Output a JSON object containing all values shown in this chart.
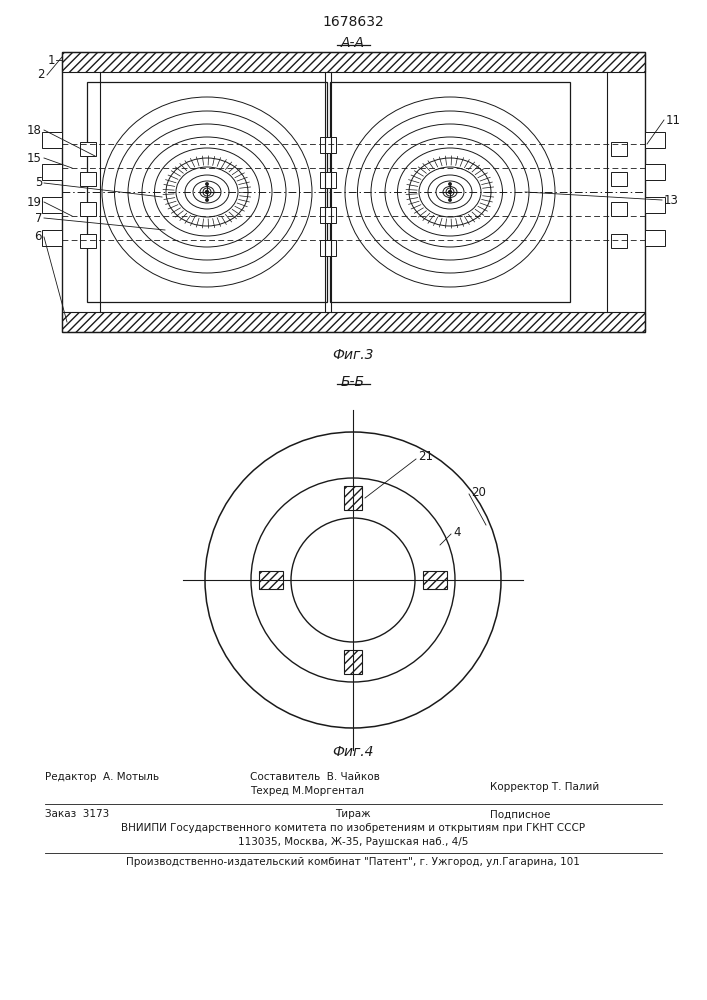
{
  "title": "1678632",
  "fig3_label": "А-А",
  "fig3_caption": "Фиг.3",
  "fig4_label": "Б-Б",
  "fig4_caption": "Фиг.4",
  "footer_line1_left": "Редактор  А. Мотыль",
  "footer_line1_center": "Составитель  В. Чайков",
  "footer_line2_center": "Техред М.Моргентал",
  "footer_line1_right": "Корректор Т. Палий",
  "footer_line3_left": "Заказ  3173",
  "footer_line3_center": "Тираж",
  "footer_line3_right": "Подписное",
  "footer_line4": "ВНИИПИ Государственного комитета по изобретениям и открытиям при ГКНТ СССР",
  "footer_line5": "113035, Москва, Ж-35, Раушская наб., 4/5",
  "footer_line6": "Производственно-издательский комбинат \"Патент\", г. Ужгород, ул.Гагарина, 101",
  "line_color": "#1a1a1a"
}
